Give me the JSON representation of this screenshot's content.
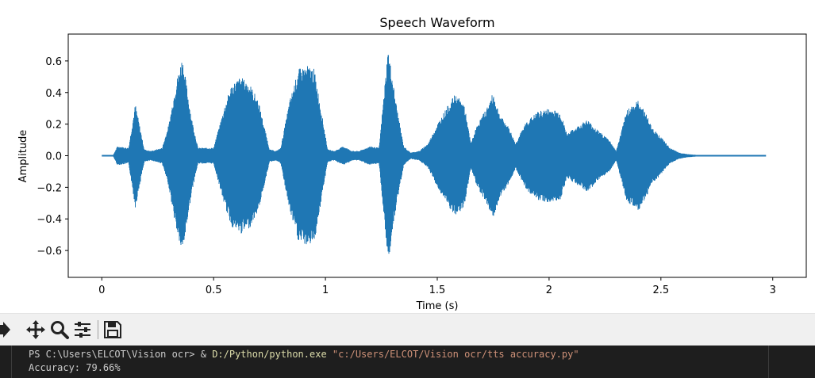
{
  "chart_data": {
    "type": "line",
    "title": "Speech Waveform",
    "xlabel": "Time (s)",
    "ylabel": "Amplitude",
    "xlim": [
      -0.15,
      3.15
    ],
    "ylim": [
      -0.77,
      0.77
    ],
    "x_ticks": [
      0,
      0.5,
      1,
      1.5,
      2,
      2.5,
      3
    ],
    "x_tick_labels": [
      "0",
      "0.5",
      "1",
      "1.5",
      "2",
      "2.5",
      "3"
    ],
    "y_ticks": [
      0.6,
      0.4,
      0.2,
      0.0,
      -0.2,
      -0.4,
      -0.6
    ],
    "y_tick_labels": [
      "0.6",
      "0.4",
      "0.2",
      "0.0",
      "−0.2",
      "−0.4",
      "−0.6"
    ],
    "grid": false,
    "line_color": "#1f77b4",
    "series": [
      {
        "duration_s": 2.97,
        "envelope_time_s": [
          0,
          0.05,
          0.07,
          0.12,
          0.15,
          0.19,
          0.22,
          0.27,
          0.3,
          0.33,
          0.36,
          0.4,
          0.43,
          0.46,
          0.5,
          0.55,
          0.58,
          0.62,
          0.66,
          0.7,
          0.75,
          0.78,
          0.8,
          0.84,
          0.88,
          0.92,
          0.95,
          0.98,
          1.01,
          1.04,
          1.08,
          1.12,
          1.15,
          1.2,
          1.24,
          1.28,
          1.32,
          1.35,
          1.38,
          1.42,
          1.46,
          1.5,
          1.54,
          1.58,
          1.62,
          1.65,
          1.68,
          1.72,
          1.75,
          1.78,
          1.82,
          1.85,
          1.9,
          1.95,
          2.0,
          2.05,
          2.08,
          2.12,
          2.17,
          2.22,
          2.27,
          2.3,
          2.35,
          2.4,
          2.43,
          2.46,
          2.5,
          2.54,
          2.58,
          2.62,
          2.7,
          2.97
        ],
        "envelope_amplitude": [
          0.0,
          0.0,
          0.06,
          0.05,
          0.33,
          0.04,
          0.03,
          0.05,
          0.2,
          0.45,
          0.63,
          0.25,
          0.05,
          0.05,
          0.05,
          0.32,
          0.45,
          0.5,
          0.46,
          0.35,
          0.04,
          0.03,
          0.05,
          0.35,
          0.55,
          0.57,
          0.55,
          0.3,
          0.04,
          0.03,
          0.06,
          0.03,
          0.03,
          0.06,
          0.05,
          0.68,
          0.3,
          0.06,
          0.02,
          0.03,
          0.08,
          0.2,
          0.3,
          0.39,
          0.33,
          0.08,
          0.2,
          0.3,
          0.4,
          0.26,
          0.18,
          0.08,
          0.22,
          0.28,
          0.3,
          0.28,
          0.14,
          0.18,
          0.23,
          0.16,
          0.1,
          0.03,
          0.3,
          0.35,
          0.28,
          0.18,
          0.12,
          0.05,
          0.02,
          0.01,
          0.0,
          0.0
        ]
      }
    ]
  },
  "toolbar": {
    "icons": [
      "forward-icon",
      "pan-icon",
      "zoom-icon",
      "configure-subplots-icon",
      "save-icon"
    ]
  },
  "terminal": {
    "prompt": "PS C:\\Users\\ELCOT\\Vision ocr> & ",
    "exe": "D:/Python/python.exe",
    "script": "\"c:/Users/ELCOT/Vision ocr/tts accuracy.py\"",
    "output": "Accuracy: 79.66%"
  }
}
